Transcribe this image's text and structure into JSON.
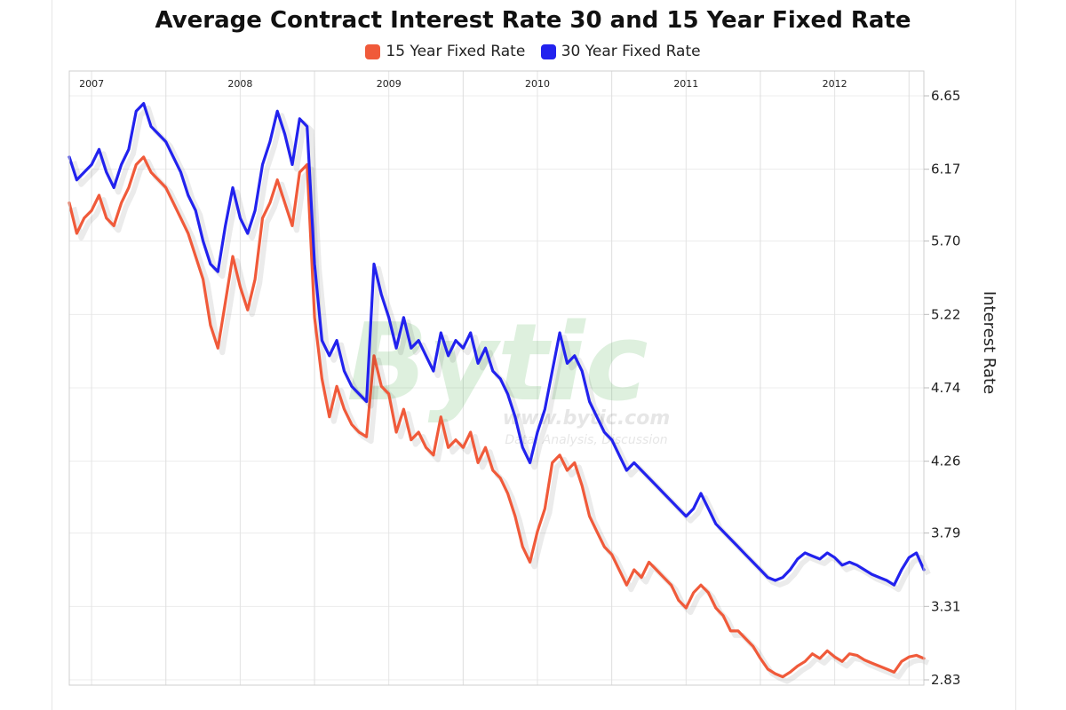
{
  "chart_data": {
    "type": "line",
    "title": "Average Contract Interest Rate 30 and 15 Year Fixed Rate",
    "ylabel": "Interest Rate",
    "xlabel": "",
    "ylim": [
      2.83,
      6.65
    ],
    "yticks": [
      "6.65",
      "6.17",
      "5.70",
      "5.22",
      "4.74",
      "4.26",
      "3.79",
      "3.31",
      "2.83"
    ],
    "x_year_labels": [
      "2007",
      "2008",
      "2009",
      "2010",
      "2011",
      "2012"
    ],
    "x_start": 2006.85,
    "x_end": 2012.6,
    "legend_position": "top-center",
    "grid": true,
    "watermark": {
      "logo": "Bytic",
      "url": "www.bytic.com",
      "tagline": "Data, Analysis, Discussion"
    },
    "series": [
      {
        "name": "15 Year Fixed Rate",
        "color": "#f05a3a",
        "points": [
          [
            2006.85,
            5.95
          ],
          [
            2006.9,
            5.75
          ],
          [
            2006.95,
            5.85
          ],
          [
            2007.0,
            5.9
          ],
          [
            2007.05,
            6.0
          ],
          [
            2007.1,
            5.85
          ],
          [
            2007.15,
            5.8
          ],
          [
            2007.2,
            5.95
          ],
          [
            2007.25,
            6.05
          ],
          [
            2007.3,
            6.2
          ],
          [
            2007.35,
            6.25
          ],
          [
            2007.4,
            6.15
          ],
          [
            2007.45,
            6.1
          ],
          [
            2007.5,
            6.05
          ],
          [
            2007.55,
            5.95
          ],
          [
            2007.6,
            5.85
          ],
          [
            2007.65,
            5.75
          ],
          [
            2007.7,
            5.6
          ],
          [
            2007.75,
            5.45
          ],
          [
            2007.8,
            5.15
          ],
          [
            2007.85,
            5.0
          ],
          [
            2007.9,
            5.3
          ],
          [
            2007.95,
            5.6
          ],
          [
            2008.0,
            5.4
          ],
          [
            2008.05,
            5.25
          ],
          [
            2008.1,
            5.45
          ],
          [
            2008.15,
            5.85
          ],
          [
            2008.2,
            5.95
          ],
          [
            2008.25,
            6.1
          ],
          [
            2008.3,
            5.95
          ],
          [
            2008.35,
            5.8
          ],
          [
            2008.4,
            6.15
          ],
          [
            2008.45,
            6.2
          ],
          [
            2008.5,
            5.2
          ],
          [
            2008.55,
            4.8
          ],
          [
            2008.6,
            4.55
          ],
          [
            2008.65,
            4.75
          ],
          [
            2008.7,
            4.6
          ],
          [
            2008.75,
            4.5
          ],
          [
            2008.8,
            4.45
          ],
          [
            2008.85,
            4.42
          ],
          [
            2008.9,
            4.95
          ],
          [
            2008.95,
            4.75
          ],
          [
            2009.0,
            4.7
          ],
          [
            2009.05,
            4.45
          ],
          [
            2009.1,
            4.6
          ],
          [
            2009.15,
            4.4
          ],
          [
            2009.2,
            4.45
          ],
          [
            2009.25,
            4.35
          ],
          [
            2009.3,
            4.3
          ],
          [
            2009.35,
            4.55
          ],
          [
            2009.4,
            4.35
          ],
          [
            2009.45,
            4.4
          ],
          [
            2009.5,
            4.35
          ],
          [
            2009.55,
            4.45
          ],
          [
            2009.6,
            4.25
          ],
          [
            2009.65,
            4.35
          ],
          [
            2009.7,
            4.2
          ],
          [
            2009.75,
            4.15
          ],
          [
            2009.8,
            4.05
          ],
          [
            2009.85,
            3.9
          ],
          [
            2009.9,
            3.7
          ],
          [
            2009.95,
            3.6
          ],
          [
            2010.0,
            3.8
          ],
          [
            2010.05,
            3.95
          ],
          [
            2010.1,
            4.25
          ],
          [
            2010.15,
            4.3
          ],
          [
            2010.2,
            4.2
          ],
          [
            2010.25,
            4.25
          ],
          [
            2010.3,
            4.1
          ],
          [
            2010.35,
            3.9
          ],
          [
            2010.4,
            3.8
          ],
          [
            2010.45,
            3.7
          ],
          [
            2010.5,
            3.65
          ],
          [
            2010.55,
            3.55
          ],
          [
            2010.6,
            3.45
          ],
          [
            2010.65,
            3.55
          ],
          [
            2010.7,
            3.5
          ],
          [
            2010.75,
            3.6
          ],
          [
            2010.8,
            3.55
          ],
          [
            2010.85,
            3.5
          ],
          [
            2010.9,
            3.45
          ],
          [
            2010.95,
            3.35
          ],
          [
            2011.0,
            3.3
          ],
          [
            2011.05,
            3.4
          ],
          [
            2011.1,
            3.45
          ],
          [
            2011.15,
            3.4
          ],
          [
            2011.2,
            3.3
          ],
          [
            2011.25,
            3.25
          ],
          [
            2011.3,
            3.15
          ],
          [
            2011.35,
            3.15
          ],
          [
            2011.4,
            3.1
          ],
          [
            2011.45,
            3.05
          ],
          [
            2011.5,
            2.97
          ],
          [
            2011.55,
            2.9
          ],
          [
            2011.6,
            2.87
          ],
          [
            2011.65,
            2.85
          ],
          [
            2011.7,
            2.88
          ],
          [
            2011.75,
            2.92
          ],
          [
            2011.8,
            2.95
          ],
          [
            2011.85,
            3.0
          ],
          [
            2011.9,
            2.97
          ],
          [
            2011.95,
            3.02
          ],
          [
            2012.0,
            2.98
          ],
          [
            2012.05,
            2.95
          ],
          [
            2012.1,
            3.0
          ],
          [
            2012.15,
            2.99
          ],
          [
            2012.2,
            2.96
          ],
          [
            2012.25,
            2.94
          ],
          [
            2012.3,
            2.92
          ],
          [
            2012.35,
            2.9
          ],
          [
            2012.4,
            2.88
          ],
          [
            2012.45,
            2.95
          ],
          [
            2012.5,
            2.98
          ],
          [
            2012.55,
            2.99
          ],
          [
            2012.6,
            2.97
          ]
        ]
      },
      {
        "name": "30 Year Fixed Rate",
        "color": "#2222ee",
        "points": [
          [
            2006.85,
            6.25
          ],
          [
            2006.9,
            6.1
          ],
          [
            2006.95,
            6.15
          ],
          [
            2007.0,
            6.2
          ],
          [
            2007.05,
            6.3
          ],
          [
            2007.1,
            6.15
          ],
          [
            2007.15,
            6.05
          ],
          [
            2007.2,
            6.2
          ],
          [
            2007.25,
            6.3
          ],
          [
            2007.3,
            6.55
          ],
          [
            2007.35,
            6.6
          ],
          [
            2007.4,
            6.45
          ],
          [
            2007.45,
            6.4
          ],
          [
            2007.5,
            6.35
          ],
          [
            2007.55,
            6.25
          ],
          [
            2007.6,
            6.15
          ],
          [
            2007.65,
            6.0
          ],
          [
            2007.7,
            5.9
          ],
          [
            2007.75,
            5.7
          ],
          [
            2007.8,
            5.55
          ],
          [
            2007.85,
            5.5
          ],
          [
            2007.9,
            5.8
          ],
          [
            2007.95,
            6.05
          ],
          [
            2008.0,
            5.85
          ],
          [
            2008.05,
            5.75
          ],
          [
            2008.1,
            5.9
          ],
          [
            2008.15,
            6.2
          ],
          [
            2008.2,
            6.35
          ],
          [
            2008.25,
            6.55
          ],
          [
            2008.3,
            6.4
          ],
          [
            2008.35,
            6.2
          ],
          [
            2008.4,
            6.5
          ],
          [
            2008.45,
            6.45
          ],
          [
            2008.5,
            5.55
          ],
          [
            2008.55,
            5.05
          ],
          [
            2008.6,
            4.95
          ],
          [
            2008.65,
            5.05
          ],
          [
            2008.7,
            4.85
          ],
          [
            2008.75,
            4.75
          ],
          [
            2008.8,
            4.7
          ],
          [
            2008.85,
            4.65
          ],
          [
            2008.9,
            5.55
          ],
          [
            2008.95,
            5.35
          ],
          [
            2009.0,
            5.2
          ],
          [
            2009.05,
            5.0
          ],
          [
            2009.1,
            5.2
          ],
          [
            2009.15,
            5.0
          ],
          [
            2009.2,
            5.05
          ],
          [
            2009.25,
            4.95
          ],
          [
            2009.3,
            4.85
          ],
          [
            2009.35,
            5.1
          ],
          [
            2009.4,
            4.95
          ],
          [
            2009.45,
            5.05
          ],
          [
            2009.5,
            5.0
          ],
          [
            2009.55,
            5.1
          ],
          [
            2009.6,
            4.9
          ],
          [
            2009.65,
            5.0
          ],
          [
            2009.7,
            4.85
          ],
          [
            2009.75,
            4.8
          ],
          [
            2009.8,
            4.7
          ],
          [
            2009.85,
            4.55
          ],
          [
            2009.9,
            4.35
          ],
          [
            2009.95,
            4.25
          ],
          [
            2010.0,
            4.45
          ],
          [
            2010.05,
            4.6
          ],
          [
            2010.1,
            4.85
          ],
          [
            2010.15,
            5.1
          ],
          [
            2010.2,
            4.9
          ],
          [
            2010.25,
            4.95
          ],
          [
            2010.3,
            4.85
          ],
          [
            2010.35,
            4.65
          ],
          [
            2010.4,
            4.55
          ],
          [
            2010.45,
            4.45
          ],
          [
            2010.5,
            4.4
          ],
          [
            2010.55,
            4.3
          ],
          [
            2010.6,
            4.2
          ],
          [
            2010.65,
            4.25
          ],
          [
            2010.7,
            4.2
          ],
          [
            2010.75,
            4.15
          ],
          [
            2010.8,
            4.1
          ],
          [
            2010.85,
            4.05
          ],
          [
            2010.9,
            4.0
          ],
          [
            2010.95,
            3.95
          ],
          [
            2011.0,
            3.9
          ],
          [
            2011.05,
            3.95
          ],
          [
            2011.1,
            4.05
          ],
          [
            2011.15,
            3.95
          ],
          [
            2011.2,
            3.85
          ],
          [
            2011.25,
            3.8
          ],
          [
            2011.3,
            3.75
          ],
          [
            2011.35,
            3.7
          ],
          [
            2011.4,
            3.65
          ],
          [
            2011.45,
            3.6
          ],
          [
            2011.5,
            3.55
          ],
          [
            2011.55,
            3.5
          ],
          [
            2011.6,
            3.48
          ],
          [
            2011.65,
            3.5
          ],
          [
            2011.7,
            3.55
          ],
          [
            2011.75,
            3.62
          ],
          [
            2011.8,
            3.66
          ],
          [
            2011.85,
            3.64
          ],
          [
            2011.9,
            3.62
          ],
          [
            2011.95,
            3.66
          ],
          [
            2012.0,
            3.63
          ],
          [
            2012.05,
            3.58
          ],
          [
            2012.1,
            3.6
          ],
          [
            2012.15,
            3.58
          ],
          [
            2012.2,
            3.55
          ],
          [
            2012.25,
            3.52
          ],
          [
            2012.3,
            3.5
          ],
          [
            2012.35,
            3.48
          ],
          [
            2012.4,
            3.45
          ],
          [
            2012.45,
            3.55
          ],
          [
            2012.5,
            3.63
          ],
          [
            2012.55,
            3.66
          ],
          [
            2012.6,
            3.55
          ]
        ]
      }
    ]
  }
}
